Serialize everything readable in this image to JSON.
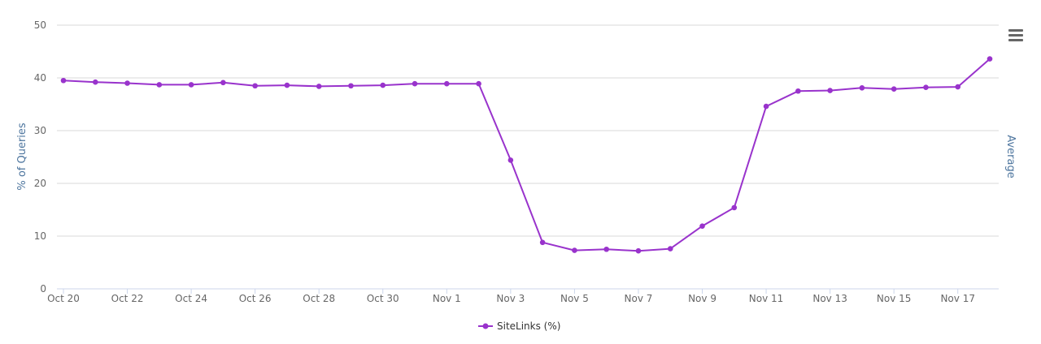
{
  "chart_data": {
    "type": "line",
    "x": [
      "Oct 20",
      "Oct 21",
      "Oct 22",
      "Oct 23",
      "Oct 24",
      "Oct 25",
      "Oct 26",
      "Oct 27",
      "Oct 28",
      "Oct 29",
      "Oct 30",
      "Oct 31",
      "Nov 1",
      "Nov 2",
      "Nov 3",
      "Nov 4",
      "Nov 5",
      "Nov 6",
      "Nov 7",
      "Nov 8",
      "Nov 9",
      "Nov 10",
      "Nov 11",
      "Nov 12",
      "Nov 13",
      "Nov 14",
      "Nov 15",
      "Nov 16",
      "Nov 17",
      "Nov 18"
    ],
    "x_tick_labels": [
      "Oct 20",
      "Oct 22",
      "Oct 24",
      "Oct 26",
      "Oct 28",
      "Oct 30",
      "Nov 1",
      "Nov 3",
      "Nov 5",
      "Nov 7",
      "Nov 9",
      "Nov 11",
      "Nov 13",
      "Nov 15",
      "Nov 17"
    ],
    "y_ticks": [
      0,
      10,
      20,
      30,
      40,
      50
    ],
    "ylim": [
      0,
      50
    ],
    "ylabel": "% of Queries",
    "y2label": "Average",
    "series": [
      {
        "name": "SiteLinks (%)",
        "color": "#9933cc",
        "values": [
          39.5,
          39.2,
          39.0,
          38.7,
          38.7,
          39.1,
          38.5,
          38.6,
          38.4,
          38.5,
          38.6,
          38.9,
          38.9,
          38.9,
          24.4,
          8.8,
          7.3,
          7.5,
          7.2,
          7.6,
          11.9,
          15.4,
          34.6,
          37.5,
          37.6,
          38.1,
          37.9,
          38.2,
          38.3,
          43.6
        ]
      }
    ],
    "grid": true,
    "legend_position": "bottom-center"
  },
  "toolbar": {
    "menu_icon": "hamburger-menu-icon"
  },
  "colors": {
    "grid": "#d8d8d8",
    "axis_line": "#ccd6eb",
    "axis_title": "#4d759e"
  }
}
